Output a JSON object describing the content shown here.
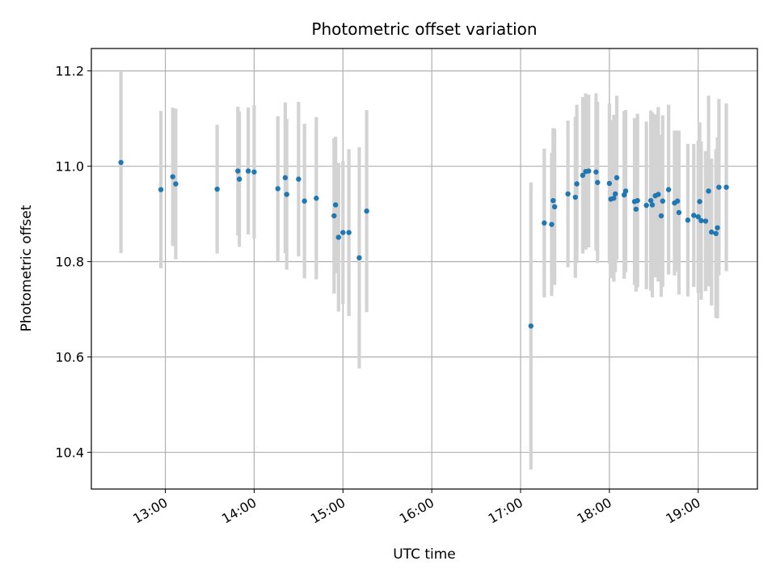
{
  "chart_data": {
    "type": "scatter",
    "title": "Photometric offset variation",
    "xlabel": "UTC time",
    "ylabel": "Photometric offset",
    "grid": true,
    "xlim": [
      "12:10",
      "19:40"
    ],
    "ylim": [
      10.323,
      11.247
    ],
    "x_ticks": [
      "13:00",
      "14:00",
      "15:00",
      "16:00",
      "17:00",
      "18:00",
      "19:00"
    ],
    "y_ticks": [
      "10.4",
      "10.6",
      "10.8",
      "11.0",
      "11.2"
    ],
    "colors": {
      "points": "#1f77b4",
      "errorbars": "#d3d3d3",
      "grid": "#b0b0b0"
    },
    "series": [
      {
        "x": [
          "12:30",
          "12:57",
          "13:05",
          "13:07",
          "13:35",
          "13:49",
          "13:50",
          "13:56",
          "14:00",
          "14:16",
          "14:21",
          "14:22",
          "14:30",
          "14:34",
          "14:42",
          "14:54",
          "14:55",
          "14:57",
          "15:00",
          "15:04",
          "15:11",
          "15:16",
          "17:07",
          "17:16",
          "17:21",
          "17:22",
          "17:23",
          "17:32",
          "17:37",
          "17:38",
          "17:42",
          "17:44",
          "17:46",
          "17:51",
          "17:52",
          "18:00",
          "18:01",
          "18:03",
          "18:04",
          "18:05",
          "18:10",
          "18:11",
          "18:17",
          "18:18",
          "18:19",
          "18:25",
          "18:28",
          "18:29",
          "18:31",
          "18:33",
          "18:35",
          "18:36",
          "18:40",
          "18:44",
          "18:46",
          "18:47",
          "18:53",
          "18:57",
          "19:00",
          "19:01",
          "19:02",
          "19:05",
          "19:07",
          "19:09",
          "19:12",
          "19:13",
          "19:14",
          "19:19"
        ],
        "y": [
          11.008,
          10.951,
          10.978,
          10.963,
          10.952,
          10.99,
          10.973,
          10.99,
          10.988,
          10.953,
          10.976,
          10.941,
          10.973,
          10.927,
          10.933,
          10.896,
          10.919,
          10.851,
          10.861,
          10.861,
          10.808,
          10.906,
          10.665,
          10.881,
          10.878,
          10.928,
          10.915,
          10.942,
          10.935,
          10.963,
          10.981,
          10.989,
          10.99,
          10.988,
          10.966,
          10.964,
          10.931,
          10.933,
          10.942,
          10.976,
          10.94,
          10.948,
          10.926,
          10.91,
          10.928,
          10.918,
          10.928,
          10.919,
          10.938,
          10.941,
          10.896,
          10.927,
          10.951,
          10.923,
          10.927,
          10.903,
          10.887,
          10.897,
          10.894,
          10.926,
          10.886,
          10.885,
          10.948,
          10.862,
          10.859,
          10.871,
          10.956,
          10.956
        ],
        "yerr": [
          0.19,
          0.165,
          0.145,
          0.158,
          0.135,
          0.135,
          0.142,
          0.133,
          0.14,
          0.152,
          0.158,
          0.158,
          0.162,
          0.162,
          0.17,
          0.163,
          0.143,
          0.156,
          0.15,
          0.175,
          0.232,
          0.212,
          0.301,
          0.156,
          0.15,
          0.152,
          0.164,
          0.154,
          0.169,
          0.166,
          0.164,
          0.164,
          0.16,
          0.165,
          0.169,
          0.168,
          0.166,
          0.175,
          0.164,
          0.172,
          0.176,
          0.17,
          0.175,
          0.173,
          0.182,
          0.176,
          0.189,
          0.194,
          0.171,
          0.183,
          0.17,
          0.18,
          0.178,
          0.152,
          0.148,
          0.172,
          0.16,
          0.15,
          0.16,
          0.166,
          0.166,
          0.147,
          0.2,
          0.154,
          0.177,
          0.19,
          0.185,
          0.176
        ]
      }
    ]
  }
}
